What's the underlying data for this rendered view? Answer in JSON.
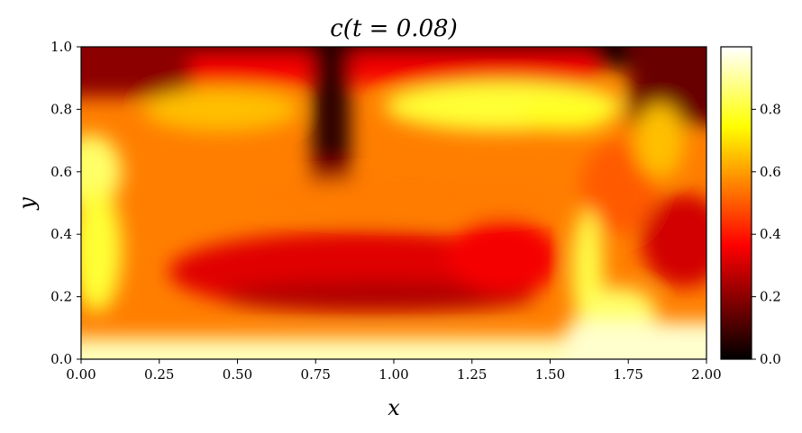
{
  "chart_data": {
    "type": "heatmap",
    "title": "c(t = 0.08)",
    "xlabel": "x",
    "ylabel": "y",
    "xlim": [
      0.0,
      2.0
    ],
    "ylim": [
      0.0,
      1.0
    ],
    "xticks": [
      "0.00",
      "0.25",
      "0.50",
      "0.75",
      "1.00",
      "1.25",
      "1.50",
      "1.75",
      "2.00"
    ],
    "yticks": [
      "0.0",
      "0.2",
      "0.4",
      "0.6",
      "0.8",
      "1.0"
    ],
    "colorbar": {
      "colormap": "hot",
      "range": [
        0.0,
        1.0
      ],
      "ticks": [
        "0.0",
        "0.2",
        "0.4",
        "0.6",
        "0.8"
      ]
    },
    "grid": false,
    "regions": [
      {
        "feature": "dark plume descending from top",
        "x": 0.8,
        "y_range": [
          0.6,
          1.0
        ],
        "value": 0.05
      },
      {
        "feature": "dark band along top edge",
        "y": 1.0,
        "value": 0.0
      },
      {
        "feature": "low-concentration pocket (red)",
        "x_range": [
          0.25,
          1.55
        ],
        "y_range": [
          0.15,
          0.45
        ],
        "value": 0.3
      },
      {
        "feature": "low-concentration pocket (red)",
        "x_range": [
          1.75,
          2.0
        ],
        "y_range": [
          0.2,
          0.5
        ],
        "value": 0.3
      },
      {
        "feature": "bright band along bottom",
        "y": 0.0,
        "value": 0.95
      },
      {
        "feature": "bright rising plume",
        "x_range": [
          1.55,
          1.7
        ],
        "y_range": [
          0.0,
          0.5
        ],
        "value": 0.85
      },
      {
        "feature": "yellow recirculation top-right",
        "x_range": [
          1.0,
          1.75
        ],
        "y_range": [
          0.75,
          0.9
        ],
        "value": 0.8
      },
      {
        "feature": "yellow left wall region",
        "x_range": [
          0.0,
          0.1
        ],
        "y_range": [
          0.5,
          0.7
        ],
        "value": 0.85
      }
    ]
  }
}
